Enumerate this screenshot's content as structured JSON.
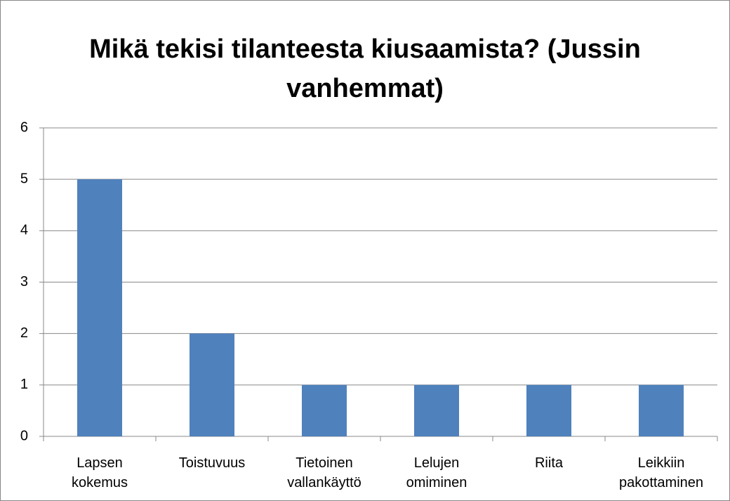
{
  "chart_data": {
    "type": "bar",
    "title": "Mikä tekisi tilanteesta kiusaamista? (Jussin vanhemmat)",
    "categories": [
      "Lapsen kokemus",
      "Toistuvuus",
      "Tietoinen vallankäyttö",
      "Lelujen omiminen",
      "Riita",
      "Leikkiin pakottaminen"
    ],
    "values": [
      5,
      2,
      1,
      1,
      1,
      1
    ],
    "color": "#4f81bd",
    "ylim": [
      0,
      6
    ],
    "yticks": [
      0,
      1,
      2,
      3,
      4,
      5,
      6
    ],
    "grid": true
  }
}
